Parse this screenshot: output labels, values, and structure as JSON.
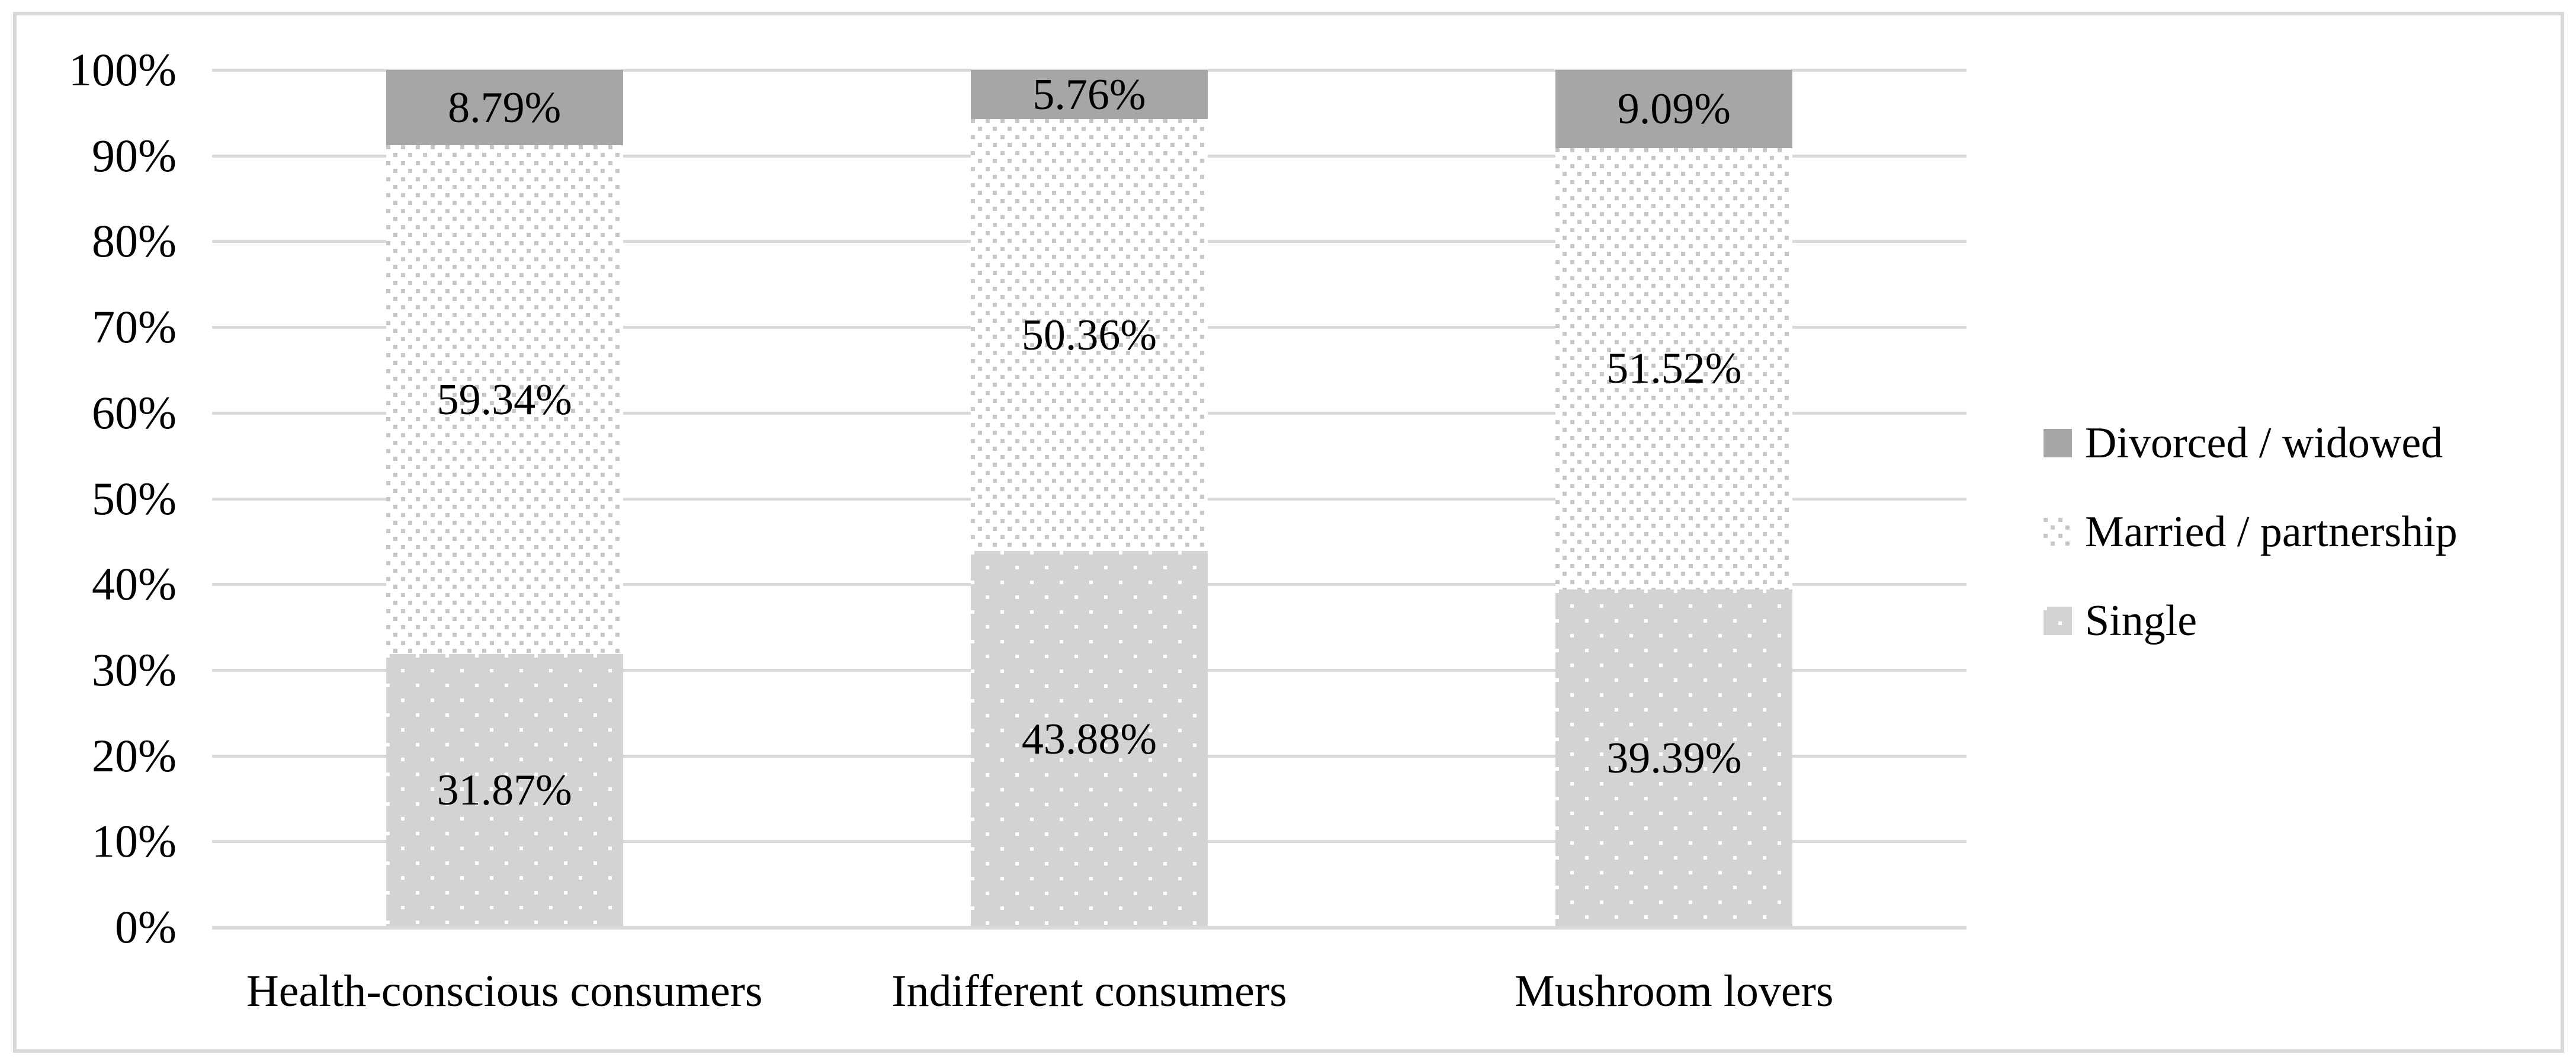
{
  "chart_data": {
    "type": "bar",
    "subtype": "100%-stacked-column",
    "title": "",
    "xlabel": "",
    "ylabel": "",
    "grid": true,
    "categories": [
      "Health-conscious consumers",
      "Indifferent consumers",
      "Mushroom lovers"
    ],
    "series": [
      {
        "name": "Single",
        "style": "gray-with-white-dots",
        "values": [
          31.87,
          43.88,
          39.39
        ],
        "data_labels": [
          "31.87%",
          "43.88%",
          "39.39%"
        ]
      },
      {
        "name": "Married / partnership",
        "style": "white-with-gray-dots",
        "values": [
          59.34,
          50.36,
          51.52
        ],
        "data_labels": [
          "59.34%",
          "50.36%",
          "51.52%"
        ]
      },
      {
        "name": "Divorced / widowed",
        "style": "solid-gray",
        "values": [
          8.79,
          5.76,
          9.09
        ],
        "data_labels": [
          "8.79%",
          "5.76%",
          "9.09%"
        ]
      }
    ],
    "y_axis": {
      "min": 0,
      "max": 100,
      "tick_interval": 10,
      "ticks": [
        "0%",
        "10%",
        "20%",
        "30%",
        "40%",
        "50%",
        "60%",
        "70%",
        "80%",
        "90%",
        "100%"
      ]
    },
    "legend": {
      "position": "right",
      "items": [
        "Divorced / widowed",
        "Married / partnership",
        "Single"
      ]
    }
  },
  "colors": {
    "divorced_fill": "#a6a6a6",
    "married_background": "#ffffff",
    "married_dot": "#c7c7c7",
    "single_background": "#d3d3d3",
    "single_dot": "#ffffff",
    "gridline": "#d9d9d9",
    "figure_border": "#d9d9d9",
    "text": "#000000"
  }
}
